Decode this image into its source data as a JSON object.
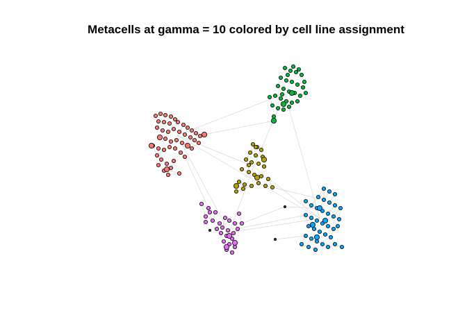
{
  "chart_data": {
    "type": "scatter",
    "title": "Metacells at gamma = 10 colored by cell line assignment",
    "xlabel": "",
    "ylabel": "",
    "axes_visible": false,
    "legend": "none",
    "edges_color": "#d6d6d6",
    "node_outline": "#000000",
    "clusters": [
      {
        "color": "#F8766D",
        "center": [
          255,
          195
        ],
        "points": [
          [
            224,
            167
          ],
          [
            231,
            164
          ],
          [
            238,
            166
          ],
          [
            246,
            168
          ],
          [
            252,
            172
          ],
          [
            228,
            175
          ],
          [
            236,
            176
          ],
          [
            244,
            178
          ],
          [
            256,
            176
          ],
          [
            264,
            180
          ],
          [
            270,
            184
          ],
          [
            276,
            188
          ],
          [
            282,
            192
          ],
          [
            288,
            196
          ],
          [
            294,
            194
          ],
          [
            226,
            184
          ],
          [
            234,
            188
          ],
          [
            242,
            190
          ],
          [
            250,
            186
          ],
          [
            258,
            190
          ],
          [
            266,
            194
          ],
          [
            274,
            198
          ],
          [
            280,
            202
          ],
          [
            286,
            206
          ],
          [
            230,
            198
          ],
          [
            238,
            200
          ],
          [
            246,
            204
          ],
          [
            254,
            202
          ],
          [
            262,
            206
          ],
          [
            270,
            210
          ],
          [
            276,
            214
          ],
          [
            220,
            210
          ],
          [
            228,
            214
          ],
          [
            236,
            216
          ],
          [
            244,
            212
          ],
          [
            252,
            214
          ],
          [
            226,
            224
          ],
          [
            232,
            230
          ],
          [
            240,
            236
          ],
          [
            246,
            242
          ],
          [
            236,
            246
          ],
          [
            228,
            238
          ],
          [
            250,
            232
          ],
          [
            260,
            220
          ],
          [
            266,
            226
          ],
          [
            258,
            250
          ],
          [
            242,
            252
          ]
        ],
        "large": [
          [
            294,
            194
          ],
          [
            218,
            210
          ],
          [
            270,
            210
          ],
          [
            230,
            198
          ],
          [
            240,
            244
          ]
        ]
      },
      {
        "color": "#00BA38",
        "center": [
          410,
          135
        ],
        "points": [
          [
            410,
            98
          ],
          [
            418,
            102
          ],
          [
            426,
            104
          ],
          [
            434,
            108
          ],
          [
            404,
            112
          ],
          [
            412,
            116
          ],
          [
            420,
            118
          ],
          [
            428,
            122
          ],
          [
            436,
            126
          ],
          [
            400,
            124
          ],
          [
            408,
            128
          ],
          [
            416,
            132
          ],
          [
            424,
            134
          ],
          [
            432,
            138
          ],
          [
            396,
            138
          ],
          [
            404,
            142
          ],
          [
            412,
            146
          ],
          [
            420,
            148
          ],
          [
            428,
            146
          ],
          [
            392,
            152
          ],
          [
            400,
            156
          ],
          [
            408,
            158
          ],
          [
            416,
            154
          ],
          [
            394,
            168
          ],
          [
            422,
            96
          ],
          [
            430,
            100
          ],
          [
            438,
            118
          ],
          [
            440,
            134
          ],
          [
            388,
            140
          ],
          [
            414,
            108
          ],
          [
            406,
            136
          ]
        ],
        "large": [
          [
            394,
            174
          ],
          [
            408,
            150
          ],
          [
            420,
            134
          ]
        ]
      },
      {
        "color": "#B79F00",
        "center": [
          365,
          240
        ],
        "points": [
          [
            364,
            208
          ],
          [
            370,
            212
          ],
          [
            376,
            216
          ],
          [
            360,
            220
          ],
          [
            368,
            224
          ],
          [
            378,
            226
          ],
          [
            354,
            230
          ],
          [
            362,
            234
          ],
          [
            372,
            236
          ],
          [
            380,
            240
          ],
          [
            348,
            244
          ],
          [
            358,
            248
          ],
          [
            366,
            252
          ],
          [
            376,
            254
          ],
          [
            386,
            258
          ],
          [
            344,
            262
          ],
          [
            352,
            266
          ],
          [
            362,
            268
          ],
          [
            372,
            264
          ],
          [
            382,
            268
          ],
          [
            392,
            270
          ],
          [
            340,
            276
          ],
          [
            350,
            272
          ],
          [
            368,
            212
          ],
          [
            358,
            238
          ]
        ],
        "large": [
          [
            370,
            256
          ],
          [
            340,
            268
          ],
          [
            380,
            230
          ]
        ]
      },
      {
        "color": "#00A9FF",
        "center": [
          460,
          315
        ],
        "points": [
          [
            466,
            272
          ],
          [
            474,
            276
          ],
          [
            482,
            280
          ],
          [
            458,
            284
          ],
          [
            466,
            288
          ],
          [
            474,
            292
          ],
          [
            482,
            296
          ],
          [
            490,
            300
          ],
          [
            448,
            296
          ],
          [
            456,
            300
          ],
          [
            464,
            304
          ],
          [
            472,
            308
          ],
          [
            480,
            312
          ],
          [
            488,
            316
          ],
          [
            440,
            310
          ],
          [
            448,
            314
          ],
          [
            456,
            318
          ],
          [
            464,
            322
          ],
          [
            472,
            326
          ],
          [
            480,
            330
          ],
          [
            444,
            326
          ],
          [
            452,
            330
          ],
          [
            460,
            334
          ],
          [
            468,
            338
          ],
          [
            476,
            342
          ],
          [
            440,
            340
          ],
          [
            448,
            344
          ],
          [
            456,
            348
          ],
          [
            464,
            352
          ],
          [
            434,
            352
          ],
          [
            444,
            356
          ],
          [
            454,
            360
          ],
          [
            472,
            356
          ],
          [
            482,
            352
          ],
          [
            492,
            356
          ],
          [
            440,
            290
          ],
          [
            486,
            326
          ]
        ],
        "large": [
          [
            460,
            300
          ],
          [
            450,
            324
          ],
          [
            468,
            318
          ],
          [
            456,
            342
          ]
        ]
      },
      {
        "color": "#E76BF3",
        "center": [
          330,
          335
        ],
        "points": [
          [
            290,
            294
          ],
          [
            300,
            300
          ],
          [
            310,
            306
          ],
          [
            296,
            312
          ],
          [
            306,
            318
          ],
          [
            316,
            322
          ],
          [
            324,
            314
          ],
          [
            330,
            318
          ],
          [
            338,
            322
          ],
          [
            344,
            308
          ],
          [
            320,
            328
          ],
          [
            328,
            332
          ],
          [
            336,
            336
          ],
          [
            326,
            340
          ],
          [
            334,
            344
          ],
          [
            322,
            348
          ],
          [
            330,
            352
          ],
          [
            338,
            356
          ],
          [
            326,
            360
          ],
          [
            334,
            364
          ],
          [
            318,
            336
          ],
          [
            342,
            330
          ],
          [
            348,
            322
          ],
          [
            312,
            330
          ],
          [
            296,
            320
          ],
          [
            302,
            306
          ]
        ],
        "large": [
          [
            330,
            340
          ],
          [
            338,
            350
          ],
          [
            326,
            356
          ]
        ]
      }
    ],
    "isolated_points": [
      [
        396,
        345
      ],
      [
        410,
        298
      ],
      [
        302,
        332
      ]
    ]
  }
}
